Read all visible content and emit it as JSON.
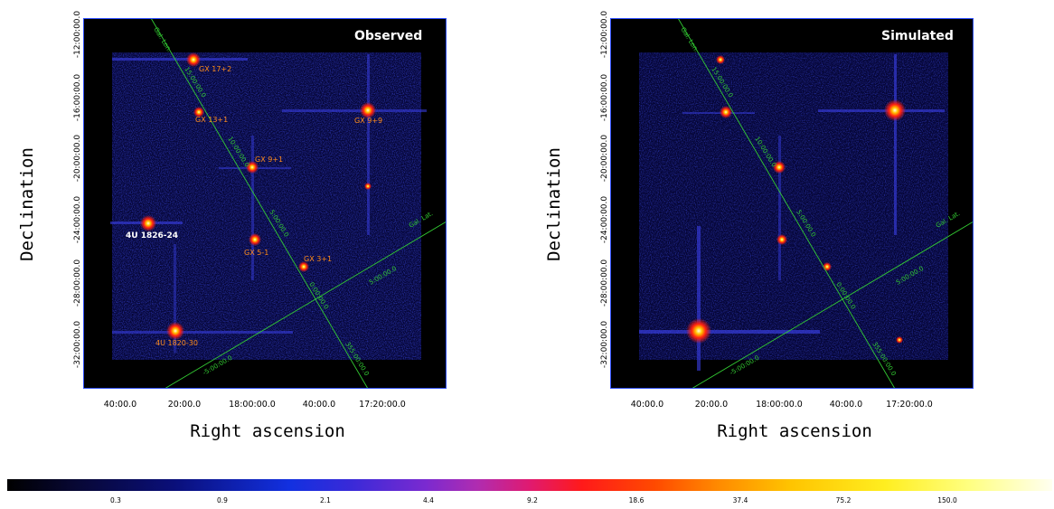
{
  "panels": [
    {
      "id": "left",
      "title": "Observed",
      "ylabel": "Declination",
      "xlabel": "Right ascension",
      "dec_ticks": [
        "-12:00:00.0",
        "-16:00:00.0",
        "-20:00:00.0",
        "-24:00:00.0",
        "-28:00:00.0",
        "-32:00:00.0"
      ],
      "ra_ticks": [
        "40:00.0",
        "20:00.0",
        "18:00:00.0",
        "40:00.0",
        "17:20:00.0"
      ],
      "gal_axes": {
        "lon_label": "Gal. Lon.",
        "lat_label": "Gal. Lat.",
        "lon_ticks": [
          "15:00:00.0",
          "10:00:00.0",
          "5:00:00.0",
          "0:00:00.0",
          "355:00:00.0"
        ],
        "lat_ticks": [
          "5:00:00.0",
          "-5:00:00.0"
        ]
      },
      "sources": [
        {
          "name": "GX 17+2",
          "color": "#ff8c1a"
        },
        {
          "name": "GX 13+1",
          "color": "#ff8c1a"
        },
        {
          "name": "GX 9+9",
          "color": "#ff8c1a"
        },
        {
          "name": "GX 9+1",
          "color": "#ff8c1a"
        },
        {
          "name": "4U 1826-24",
          "color": "#ffffff"
        },
        {
          "name": "GX 5-1",
          "color": "#ff8c1a"
        },
        {
          "name": "GX 3+1",
          "color": "#ff8c1a"
        },
        {
          "name": "4U 1820-30",
          "color": "#ff8c1a"
        }
      ]
    },
    {
      "id": "right",
      "title": "Simulated",
      "ylabel": "Declination",
      "xlabel": "Right ascension",
      "dec_ticks": [
        "-12:00:00.0",
        "-16:00:00.0",
        "-20:00:00.0",
        "-24:00:00.0",
        "-28:00:00.0",
        "-32:00:00.0"
      ],
      "ra_ticks": [
        "40:00.0",
        "20:00.0",
        "18:00:00.0",
        "40:00.0",
        "17:20:00.0"
      ],
      "gal_axes": {
        "lon_label": "Gal. Lon.",
        "lat_label": "Gal. Lat.",
        "lon_ticks": [
          "15:00:00.0",
          "10:00:00.0",
          "5:00:00.0",
          "0:00:00.0",
          "355:00:00.0"
        ],
        "lat_ticks": [
          "5:00:00.0",
          "-5:00:00.0"
        ]
      }
    }
  ],
  "colorbar": {
    "ticks": [
      "0.3",
      "0.9",
      "2.1",
      "4.4",
      "9.2",
      "18.6",
      "37.4",
      "75.2",
      "150.0"
    ],
    "colormap": "heat",
    "colors": [
      "#000000",
      "#0a0f7a",
      "#1230e0",
      "#b02cb0",
      "#ff1a1a",
      "#ff8a00",
      "#ffee20",
      "#fffff0"
    ]
  },
  "accent": {
    "grid": "#33cc33",
    "source_label": "#ff8c1a",
    "title": "#ffffff"
  }
}
